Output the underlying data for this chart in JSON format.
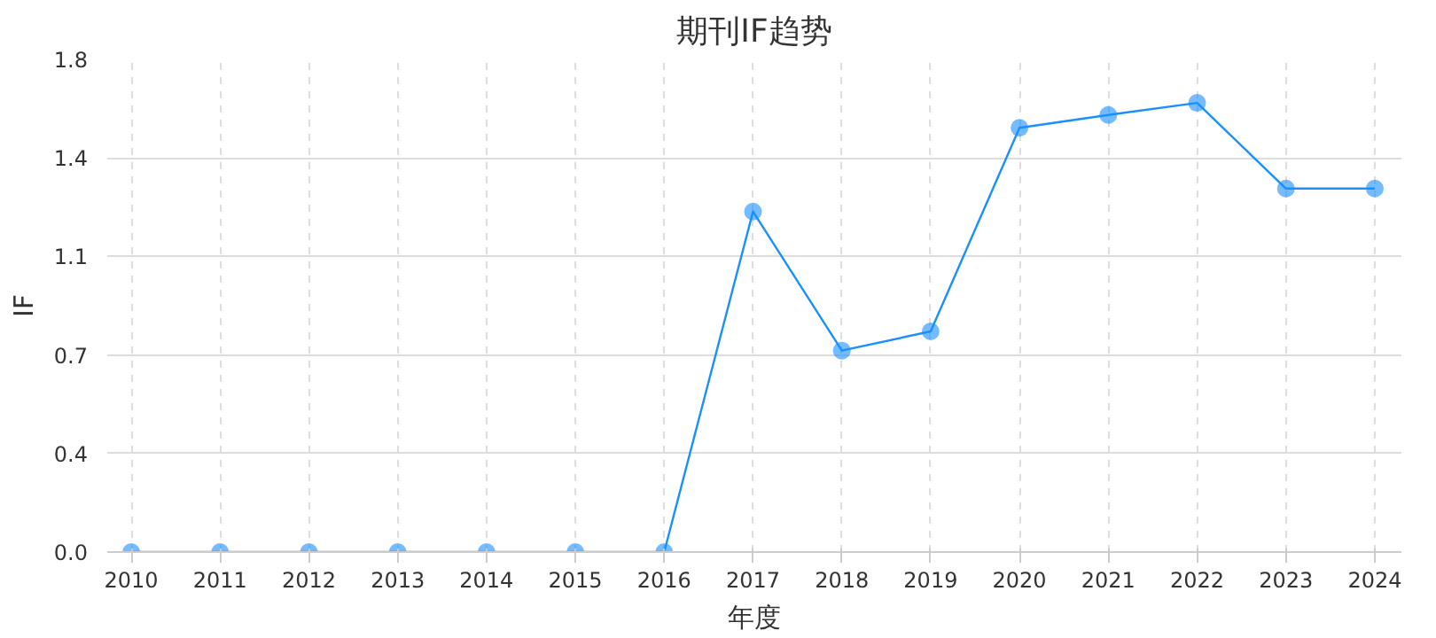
{
  "chart_data": {
    "type": "line",
    "title": "期刊IF趋势",
    "xlabel": "年度",
    "ylabel": "IF",
    "categories": [
      "2010",
      "2011",
      "2012",
      "2013",
      "2014",
      "2015",
      "2016",
      "2017",
      "2018",
      "2019",
      "2020",
      "2021",
      "2022",
      "2023",
      "2024"
    ],
    "series": [
      {
        "color": "#1890ff",
        "values": [
          0,
          0,
          0,
          0,
          0,
          0,
          0,
          1.244,
          0.736,
          0.806,
          1.55,
          1.597,
          1.641,
          1.328,
          1.328
        ]
      }
    ],
    "ylim": [
      0,
      1.8
    ],
    "yticks": [
      {
        "value": 0,
        "label": "0.0"
      },
      {
        "value": 0.36,
        "label": "0.4"
      },
      {
        "value": 0.72,
        "label": "0.7"
      },
      {
        "value": 1.08,
        "label": "1.1"
      },
      {
        "value": 1.44,
        "label": "1.4"
      },
      {
        "value": 1.8,
        "label": "1.8"
      }
    ],
    "grid": true,
    "marker": "circle",
    "line_style": "solid"
  }
}
